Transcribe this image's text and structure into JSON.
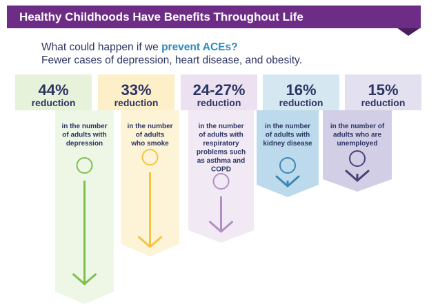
{
  "header": {
    "title": "Healthy Childhoods Have Benefits Throughout Life"
  },
  "subtitle": {
    "line1_start": "What could happen if we ",
    "line1_highlight": "prevent ACEs?",
    "line2": "Fewer cases of depression, heart disease, and obesity."
  },
  "columns": [
    {
      "percent": "44%",
      "label": "reduction",
      "description": [
        "in the number",
        "of adults with",
        "depression"
      ]
    },
    {
      "percent": "33%",
      "label": "reduction",
      "description": [
        "in the number",
        "of adults",
        "who smoke"
      ]
    },
    {
      "percent": "24-27%",
      "label": "reduction",
      "description": [
        "in the number",
        "of adults with",
        "respiratory",
        "problems such",
        "as asthma and",
        "COPD"
      ]
    },
    {
      "percent": "16%",
      "label": "reduction",
      "description": [
        "in the number",
        "of adults with",
        "kidney disease"
      ]
    },
    {
      "percent": "15%",
      "label": "reduction",
      "description": [
        "in the number of",
        "adults who are",
        "unemployed"
      ]
    }
  ]
}
